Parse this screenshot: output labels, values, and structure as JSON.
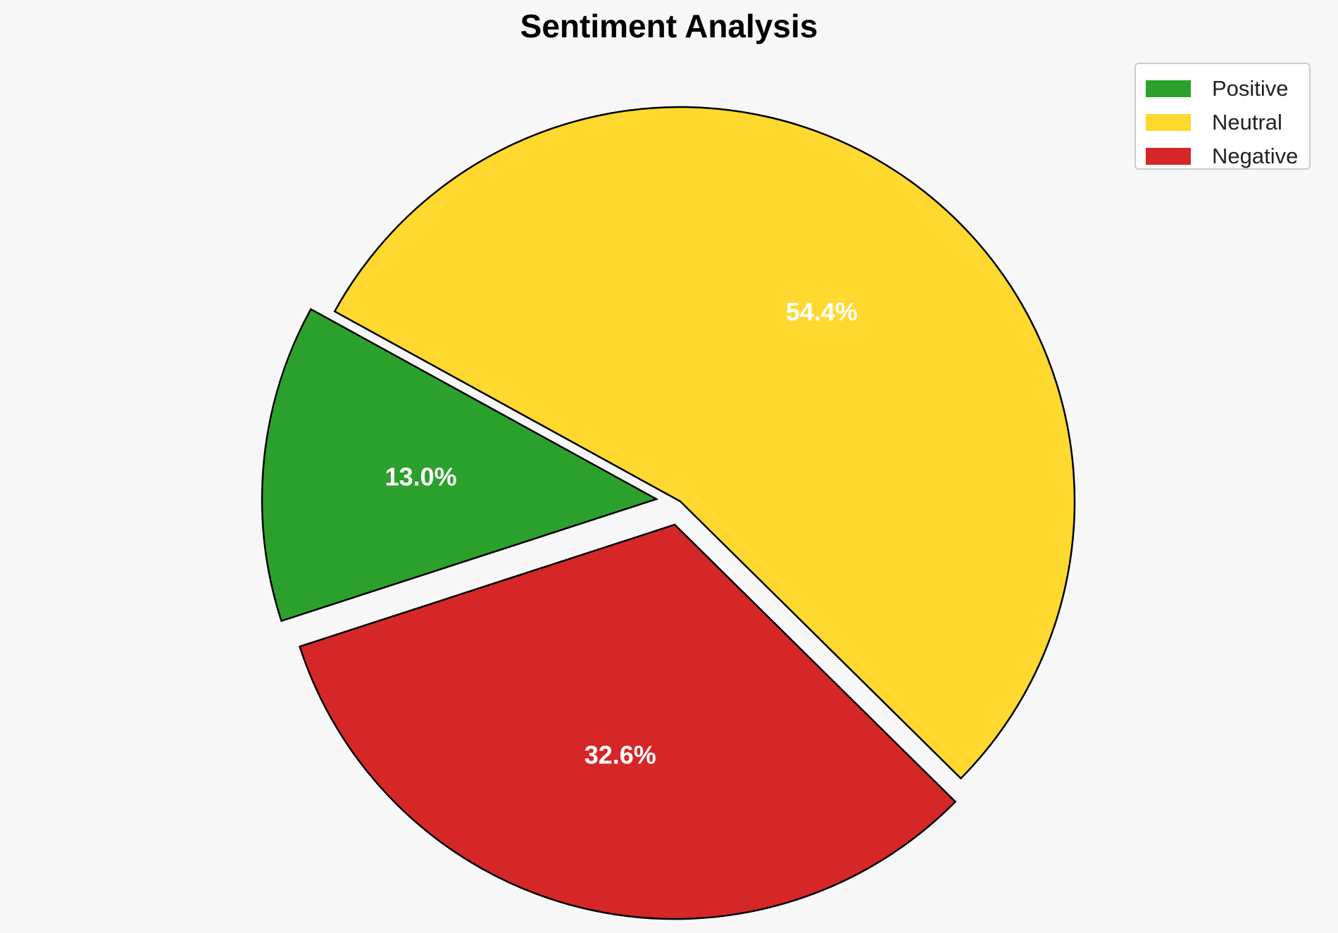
{
  "chart_data": {
    "type": "pie",
    "title": "Sentiment Analysis",
    "slices": [
      {
        "name": "Positive",
        "value": 13.0,
        "label": "13.0%",
        "color": "#2ca02c"
      },
      {
        "name": "Neutral",
        "value": 54.4,
        "label": "54.4%",
        "color": "#ffd92f"
      },
      {
        "name": "Negative",
        "value": 32.6,
        "label": "32.6%",
        "color": "#d62728"
      }
    ],
    "exploded": [
      "Positive",
      "Negative"
    ],
    "legend_position": "top-right",
    "label_color": "#ffffff",
    "edge_color": "#000000"
  }
}
